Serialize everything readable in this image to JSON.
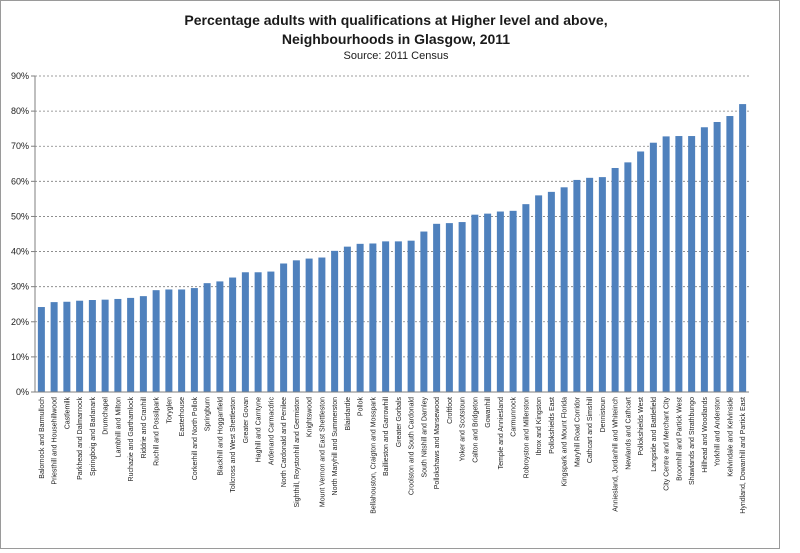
{
  "chart_data": {
    "type": "bar",
    "title_lines": [
      "Percentage adults with qualifications at Higher level and above,",
      "Neighbourhoods in Glasgow, 2011"
    ],
    "subtitle": "Source: 2011 Census",
    "xlabel": "",
    "ylabel": "",
    "ylim": [
      0,
      90
    ],
    "yticks": [
      "0%",
      "10%",
      "20%",
      "30%",
      "40%",
      "50%",
      "60%",
      "70%",
      "80%",
      "90%"
    ],
    "grid": true,
    "legend": "none",
    "bar_color": "#4f81bd",
    "categories": [
      "Balornock and Barmulloch",
      "Priesthill and Househillwood",
      "Castlemilk",
      "Parkhead and Dalmarnock",
      "Springboig and Barlanark",
      "Drumchapel",
      "Lambhill and Milton",
      "Ruchazie and Garthamlock",
      "Riddrie and Cranhill",
      "Ruchill and Possilpark",
      "Toryglen",
      "Easterhouse",
      "Corkerhill and North Pollok",
      "Springburn",
      "Blackhill and Hogganfield",
      "Tollcross and West Shettleston",
      "Greater Govan",
      "Haghill and Carntyne",
      "Ardenand Carmacdric",
      "North Cardonald and Penilee",
      "Sighthill, Roystonhill and Germiston",
      "Knightswood",
      "Mount Vernon and East Shettleston",
      "North Maryhill and Summerston",
      "Blairdardie",
      "Pollok",
      "Bellahouston, Craigton and Mosspark",
      "Baillieston and Garrowhill",
      "Greater Gorbals",
      "Croolston and South Cardonald",
      "South Nitshill and Darnley",
      "Pollokshaws and Mansewood",
      "Croftfoot",
      "Yoker and Scotstoun",
      "Calton and Bridgeton",
      "Gowanhill",
      "Temple and Anniesland",
      "Carmunnock",
      "Robroyston and Millerston",
      "Ibrox and Kingston",
      "Pollokshields East",
      "Kingspark and Mount Florida",
      "Maryhill Road Corridor",
      "Cathcart and Simshill",
      "Dennistoun",
      "Anniesland, Jordanhill and Whiteinch",
      "Newlands and Cathcart",
      "Pollokshields West",
      "Langside and Battlefield",
      "City Centre and Merchant City",
      "Broomhill and Partick West",
      "Shawlands and Strathbungo",
      "Hillhead and Woodlands",
      "Yorkhill and Anderston",
      "Kelvindale and Kelvinside",
      "Hyndland, Dowanhill and Partick East"
    ],
    "values": [
      24.2,
      25.6,
      25.7,
      26.0,
      26.2,
      26.3,
      26.5,
      26.8,
      27.3,
      29.0,
      29.2,
      29.2,
      29.6,
      31.0,
      31.5,
      32.6,
      34.1,
      34.1,
      34.3,
      36.6,
      37.5,
      38.0,
      38.3,
      40.2,
      41.4,
      42.2,
      42.3,
      42.9,
      42.9,
      43.1,
      45.7,
      47.9,
      48.1,
      48.4,
      50.5,
      50.8,
      51.4,
      51.6,
      53.5,
      56.0,
      57.0,
      58.3,
      60.4,
      61.0,
      61.2,
      63.8,
      65.4,
      68.5,
      71.0,
      72.8,
      72.9,
      72.9,
      75.4,
      76.9,
      78.6,
      82.0
    ]
  }
}
